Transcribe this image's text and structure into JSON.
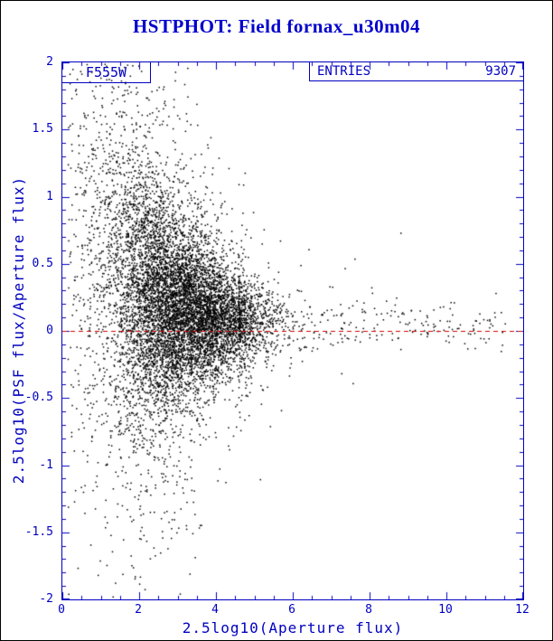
{
  "chart_data": {
    "type": "scatter",
    "title": "HSTPHOT: Field fornax_u30m04",
    "xlabel": "2.5log10(Aperture flux)",
    "ylabel": "2.5log10(PSF flux/Aperture flux)",
    "xlim": [
      0,
      12
    ],
    "ylim": [
      -2,
      2
    ],
    "xticks": [
      0,
      2,
      4,
      6,
      8,
      10,
      12
    ],
    "yticks": [
      -2,
      -1.5,
      -1,
      -0.5,
      0,
      0.5,
      1,
      1.5,
      2
    ],
    "x_minor_step": 0.5,
    "y_minor_step": 0.1,
    "grid": false,
    "legend": "none",
    "filter_label": "F555W",
    "stats": {
      "label": "ENTRIES",
      "value": "9307"
    },
    "n_points": 9307,
    "marker_color": "#000000",
    "axis_color": "#0000c0",
    "title_color": "#0000cc",
    "reference_line": {
      "y": 0,
      "color": "#d40000",
      "style": "dashed"
    },
    "distribution": {
      "note": "synthetic reconstruction: funnel-shaped PSF/aperture ratio scatter converging to y~0 at bright fluxes, wide spread at faint fluxes",
      "seed": 20040531,
      "components": [
        {
          "weight": 0.6,
          "x_mean": 3.5,
          "x_sigma": 0.85
        },
        {
          "weight": 0.24,
          "x_mean": 2.4,
          "x_sigma": 0.55
        },
        {
          "weight": 0.11,
          "x_mean": 1.4,
          "x_sigma": 0.65
        },
        {
          "weight": 0.05,
          "x_tail_min": 4.6,
          "x_tail_max": 11.6,
          "x_tail_pow": 3.2
        }
      ],
      "y_mean": {
        "base": 0.04,
        "amp": 0.45,
        "x0": 0.5,
        "scale": 1.7
      },
      "y_sigma": {
        "base": 0.08,
        "amp": 1.05,
        "x0": 0.5,
        "scale": 1.8
      },
      "y_skew": {
        "amp": 0.3,
        "x0": 0.5,
        "scale": 1.2
      },
      "outlier_frac": 0.14,
      "outlier_scale": 2.6
    }
  }
}
